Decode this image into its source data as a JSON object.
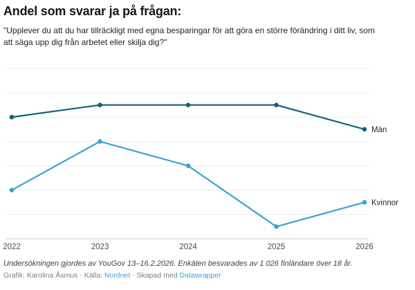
{
  "header": {
    "title": "Andel som svarar ja på frågan:",
    "subtitle": "\"Upplever du att du har tillräckligt med egna besparingar för att göra en större förändring i ditt liv, som\natt säga upp dig från arbetet eller skilja dig?\""
  },
  "chart_data": {
    "type": "line",
    "x": [
      "2022",
      "2023",
      "2024",
      "2025",
      "2026"
    ],
    "series": [
      {
        "id": "men",
        "name": "Män",
        "color": "#15607c",
        "values": [
          20,
          22,
          22,
          22,
          18
        ]
      },
      {
        "id": "women",
        "name": "Kvinnor",
        "color": "#38a3d0",
        "values": [
          8,
          16,
          12,
          2,
          6
        ]
      }
    ],
    "title": "Andel som svarar ja på frågan:",
    "xlabel": "",
    "ylabel": "",
    "ylim": [
      0,
      28
    ],
    "grid_step": 4,
    "grid": "horizontal gridlines only, y-axis tick labels hidden",
    "legend_position": "labels at right end of each line",
    "point_markers": true
  },
  "footer": {
    "notes": "Undersökningen gjordes av YouGov 13–16.2.2026. Enkäten besvarades av 1 026 finländare över 18 år.",
    "byline_prefix": "Grafik: Karolina Åsmus · Källa: ",
    "source_link": "Nordnet",
    "byline_middle": " · Skapad med ",
    "tool_link": "Datawrapper"
  },
  "colors": {
    "series_men": "#15607c",
    "series_women": "#38a3d0",
    "axis_line": "#c9c9c9",
    "gridline": "#ebebeb",
    "link": "#3aa2db"
  }
}
